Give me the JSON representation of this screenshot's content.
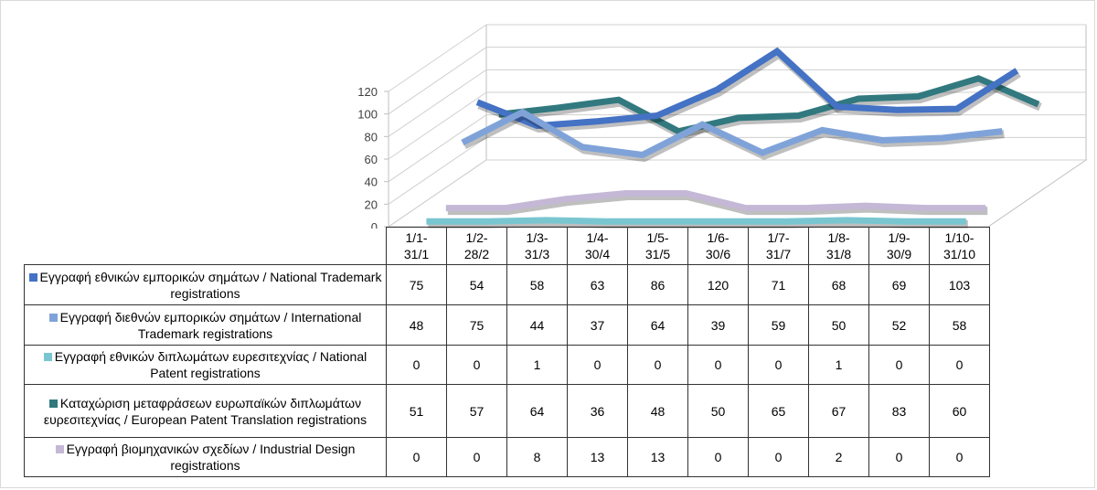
{
  "chart_data": {
    "type": "line",
    "view": "3d",
    "categories": [
      "1/1-31/1",
      "1/2-28/2",
      "1/3-31/3",
      "1/4-30/4",
      "1/5-31/5",
      "1/6-30/6",
      "1/7-31/7",
      "1/8-31/8",
      "1/9-30/9",
      "1/10-31/10"
    ],
    "yticks": [
      "0",
      "20",
      "40",
      "60",
      "80",
      "100",
      "120"
    ],
    "ylim": [
      0,
      120
    ],
    "grid": true,
    "legend": "data-table",
    "series": [
      {
        "name": "Εγγραφή εθνικών εμπορικών σημάτων / National Trademark registrations",
        "color": "#4472c4",
        "values": [
          75,
          54,
          58,
          63,
          86,
          120,
          71,
          68,
          69,
          103
        ]
      },
      {
        "name": "Εγγραφή διεθνών εμπορικών σημάτων / International Trademark registrations",
        "color": "#7fa3d8",
        "values": [
          48,
          75,
          44,
          37,
          64,
          39,
          59,
          50,
          52,
          58
        ]
      },
      {
        "name": "Εγγραφή εθνικών διπλωμάτων ευρεσιτεχνίας / National Patent registrations",
        "color": "#79c6d1",
        "values": [
          0,
          0,
          1,
          0,
          0,
          0,
          0,
          1,
          0,
          0
        ]
      },
      {
        "name": "Καταχώριση μεταφράσεων ευρωπαϊκών διπλωμάτων ευρεσιτεχνίας / European Patent Translation registrations",
        "color": "#31797f",
        "values": [
          51,
          57,
          64,
          36,
          48,
          50,
          65,
          67,
          83,
          60
        ]
      },
      {
        "name": "Εγγραφή βιομηχανικών σχεδίων / Industrial Design registrations",
        "color": "#c4b8d6",
        "values": [
          0,
          0,
          8,
          13,
          13,
          0,
          0,
          2,
          0,
          0
        ]
      }
    ]
  }
}
